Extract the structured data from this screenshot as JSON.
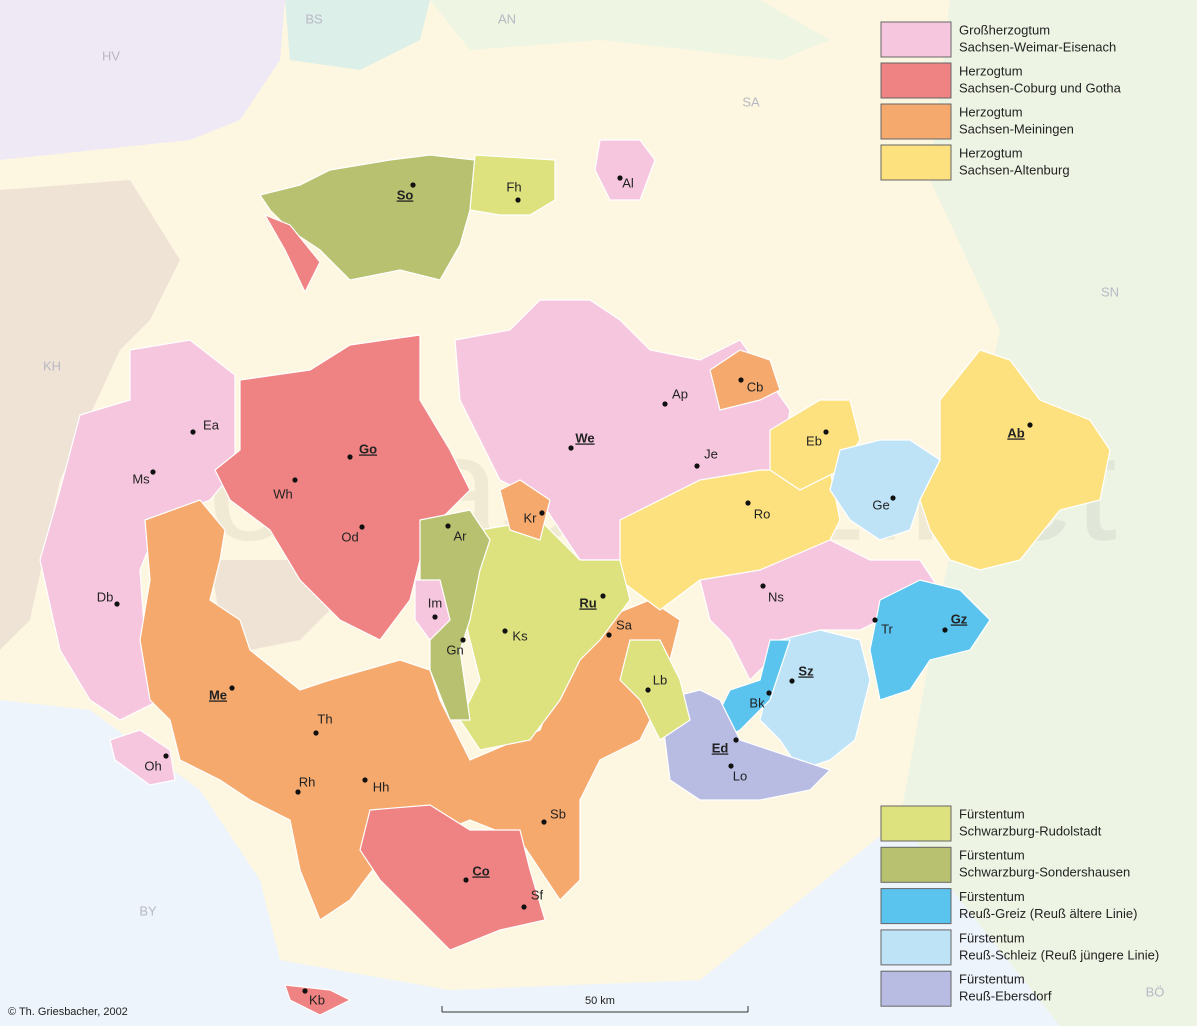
{
  "map": {
    "watermark": "thomasgraz.net",
    "legend": [
      {
        "line1": "Großherzogtum",
        "line2": "Sachsen-Weimar-Eisenach",
        "color": "#f5c6de"
      },
      {
        "line1": "Herzogtum",
        "line2": "Sachsen-Coburg und Gotha",
        "color": "#ef8383"
      },
      {
        "line1": "Herzogtum",
        "line2": "Sachsen-Meiningen",
        "color": "#f5a96d"
      },
      {
        "line1": "Herzogtum",
        "line2": "Sachsen-Altenburg",
        "color": "#fde17f"
      },
      {
        "line1": "Fürstentum",
        "line2": "Schwarzburg-Rudolstadt",
        "color": "#dde27f"
      },
      {
        "line1": "Fürstentum",
        "line2": "Schwarzburg-Sondershausen",
        "color": "#b8c16f"
      },
      {
        "line1": "Fürstentum",
        "line2": "Reuß-Greiz (Reuß ältere Linie)",
        "color": "#5ac4ef"
      },
      {
        "line1": "Fürstentum",
        "line2": "Reuß-Schleiz (Reuß jüngere Linie)",
        "color": "#bee3f7"
      },
      {
        "line1": "Fürstentum",
        "line2": "Reuß-Ebersdorf",
        "color": "#b8bce3"
      }
    ],
    "neighbors": [
      "HV",
      "BS",
      "AN",
      "SA",
      "SN",
      "KH",
      "BY",
      "BÖ"
    ],
    "places": [
      {
        "abbr": "So",
        "capital": true
      },
      {
        "abbr": "Fh",
        "capital": false
      },
      {
        "abbr": "Al",
        "capital": false
      },
      {
        "abbr": "Ea",
        "capital": false
      },
      {
        "abbr": "Ms",
        "capital": false
      },
      {
        "abbr": "Go",
        "capital": true
      },
      {
        "abbr": "Wh",
        "capital": false
      },
      {
        "abbr": "Od",
        "capital": false
      },
      {
        "abbr": "Db",
        "capital": false
      },
      {
        "abbr": "We",
        "capital": true
      },
      {
        "abbr": "Ap",
        "capital": false
      },
      {
        "abbr": "Cb",
        "capital": false
      },
      {
        "abbr": "Je",
        "capital": false
      },
      {
        "abbr": "Eb",
        "capital": false
      },
      {
        "abbr": "Ab",
        "capital": true
      },
      {
        "abbr": "Ge",
        "capital": false
      },
      {
        "abbr": "Ro",
        "capital": false
      },
      {
        "abbr": "Ar",
        "capital": false
      },
      {
        "abbr": "Kr",
        "capital": false
      },
      {
        "abbr": "Im",
        "capital": false
      },
      {
        "abbr": "Ru",
        "capital": true
      },
      {
        "abbr": "Ks",
        "capital": false
      },
      {
        "abbr": "Gn",
        "capital": false
      },
      {
        "abbr": "Sa",
        "capital": false
      },
      {
        "abbr": "Ns",
        "capital": false
      },
      {
        "abbr": "Gz",
        "capital": true
      },
      {
        "abbr": "Tr",
        "capital": false
      },
      {
        "abbr": "Sz",
        "capital": true
      },
      {
        "abbr": "Lb",
        "capital": false
      },
      {
        "abbr": "Bk",
        "capital": false
      },
      {
        "abbr": "Me",
        "capital": true
      },
      {
        "abbr": "Th",
        "capital": false
      },
      {
        "abbr": "Ed",
        "capital": true
      },
      {
        "abbr": "Lo",
        "capital": false
      },
      {
        "abbr": "Oh",
        "capital": false
      },
      {
        "abbr": "Rh",
        "capital": false
      },
      {
        "abbr": "Hh",
        "capital": false
      },
      {
        "abbr": "Sb",
        "capital": false
      },
      {
        "abbr": "Co",
        "capital": true
      },
      {
        "abbr": "Sf",
        "capital": false
      },
      {
        "abbr": "Kb",
        "capital": false
      }
    ],
    "scale_label": "50 km",
    "copyright": "© Th. Griesbacher, 2002"
  }
}
